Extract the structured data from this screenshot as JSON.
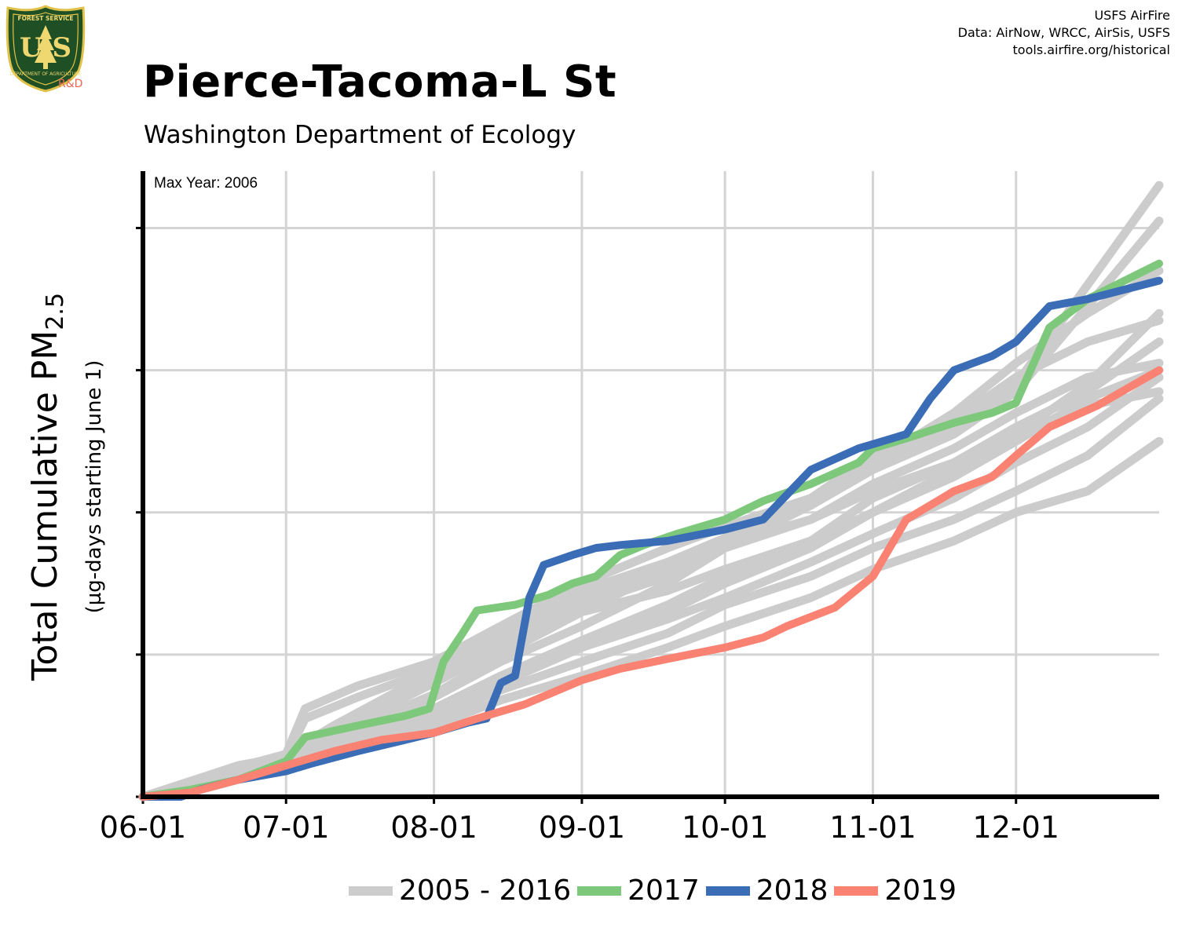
{
  "header": {
    "title": "Pierce-Tacoma-L St",
    "subtitle": "Washington Department of Ecology",
    "credits": [
      "USFS AirFire",
      "Data: AirNow, WRCC, AirSis, USFS",
      "tools.airfire.org/historical"
    ]
  },
  "logo": {
    "top_text": "FOREST SERVICE",
    "letters": "U S",
    "bottom_text": "DEPARTMENT OF AGRICULTURE",
    "rd_text": "R&D"
  },
  "chart_data": {
    "type": "line",
    "title": "Pierce-Tacoma-L St",
    "subtitle": "Washington Department of Ecology",
    "ylabel": "Total Cumulative PM",
    "ylabel_sub": "2.5",
    "ylabel2": "(µg-days starting June 1)",
    "annotation": "Max Year: 2006",
    "x_ticks": [
      "06-01",
      "07-01",
      "08-01",
      "09-01",
      "10-01",
      "11-01",
      "12-01"
    ],
    "x_tick_days": [
      0,
      30,
      61,
      92,
      122,
      153,
      183
    ],
    "xlim": [
      0,
      213
    ],
    "ylim": [
      0,
      4.4
    ],
    "y_gridlines": [
      1,
      2,
      3,
      4
    ],
    "y_tick_labels": false,
    "grid": true,
    "legend_position": "bottom",
    "colors": {
      "background_series": "#cccccc",
      "2017": "#7dc87a",
      "2018": "#3a6db5",
      "2019": "#f98272"
    },
    "legend": [
      {
        "label": "2005 - 2016",
        "color": "#cccccc"
      },
      {
        "label": "2017",
        "color": "#7dc87a"
      },
      {
        "label": "2018",
        "color": "#3a6db5"
      },
      {
        "label": "2019",
        "color": "#f98272"
      }
    ],
    "background_series": [
      {
        "name": "2006",
        "points": [
          [
            0,
            0
          ],
          [
            20,
            0.2
          ],
          [
            30,
            0.3
          ],
          [
            34,
            0.62
          ],
          [
            45,
            0.78
          ],
          [
            61,
            0.95
          ],
          [
            75,
            1.2
          ],
          [
            92,
            1.5
          ],
          [
            110,
            1.75
          ],
          [
            122,
            1.9
          ],
          [
            140,
            2.1
          ],
          [
            153,
            2.35
          ],
          [
            170,
            2.6
          ],
          [
            183,
            2.9
          ],
          [
            198,
            3.6
          ],
          [
            213,
            4.3
          ]
        ]
      },
      {
        "name": "2007",
        "points": [
          [
            0,
            0
          ],
          [
            20,
            0.22
          ],
          [
            30,
            0.28
          ],
          [
            34,
            0.55
          ],
          [
            45,
            0.7
          ],
          [
            61,
            0.9
          ],
          [
            75,
            1.15
          ],
          [
            92,
            1.45
          ],
          [
            110,
            1.65
          ],
          [
            122,
            1.82
          ],
          [
            140,
            2.05
          ],
          [
            153,
            2.3
          ],
          [
            170,
            2.55
          ],
          [
            183,
            2.85
          ],
          [
            198,
            3.45
          ],
          [
            213,
            4.05
          ]
        ]
      },
      {
        "name": "2008",
        "points": [
          [
            0,
            0
          ],
          [
            20,
            0.18
          ],
          [
            30,
            0.25
          ],
          [
            40,
            0.4
          ],
          [
            61,
            0.7
          ],
          [
            75,
            0.95
          ],
          [
            92,
            1.2
          ],
          [
            110,
            1.5
          ],
          [
            122,
            1.75
          ],
          [
            140,
            2.05
          ],
          [
            153,
            2.35
          ],
          [
            170,
            2.7
          ],
          [
            183,
            3.05
          ],
          [
            198,
            3.4
          ],
          [
            213,
            3.7
          ]
        ]
      },
      {
        "name": "2009",
        "points": [
          [
            0,
            0
          ],
          [
            20,
            0.2
          ],
          [
            30,
            0.28
          ],
          [
            40,
            0.42
          ],
          [
            61,
            0.72
          ],
          [
            75,
            1.0
          ],
          [
            92,
            1.3
          ],
          [
            110,
            1.6
          ],
          [
            122,
            1.82
          ],
          [
            140,
            2.1
          ],
          [
            153,
            2.4
          ],
          [
            170,
            2.65
          ],
          [
            183,
            2.95
          ],
          [
            198,
            3.2
          ],
          [
            213,
            3.35
          ]
        ]
      },
      {
        "name": "2010",
        "points": [
          [
            0,
            0
          ],
          [
            20,
            0.19
          ],
          [
            30,
            0.26
          ],
          [
            40,
            0.38
          ],
          [
            61,
            0.62
          ],
          [
            75,
            0.85
          ],
          [
            92,
            1.1
          ],
          [
            110,
            1.35
          ],
          [
            122,
            1.55
          ],
          [
            140,
            1.8
          ],
          [
            153,
            2.1
          ],
          [
            170,
            2.35
          ],
          [
            183,
            2.6
          ],
          [
            198,
            2.85
          ],
          [
            213,
            3.2
          ]
        ]
      },
      {
        "name": "2011",
        "points": [
          [
            0,
            0
          ],
          [
            20,
            0.17
          ],
          [
            30,
            0.23
          ],
          [
            40,
            0.35
          ],
          [
            61,
            0.58
          ],
          [
            75,
            0.8
          ],
          [
            92,
            1.05
          ],
          [
            110,
            1.3
          ],
          [
            122,
            1.5
          ],
          [
            140,
            1.75
          ],
          [
            153,
            2.0
          ],
          [
            170,
            2.3
          ],
          [
            183,
            2.55
          ],
          [
            198,
            2.75
          ],
          [
            213,
            2.85
          ]
        ]
      },
      {
        "name": "2012",
        "points": [
          [
            0,
            0
          ],
          [
            20,
            0.18
          ],
          [
            30,
            0.24
          ],
          [
            40,
            0.36
          ],
          [
            61,
            0.6
          ],
          [
            75,
            0.82
          ],
          [
            92,
            1.05
          ],
          [
            110,
            1.25
          ],
          [
            122,
            1.4
          ],
          [
            140,
            1.65
          ],
          [
            153,
            1.85
          ],
          [
            170,
            2.1
          ],
          [
            183,
            2.35
          ],
          [
            198,
            2.6
          ],
          [
            213,
            2.95
          ]
        ]
      },
      {
        "name": "2013",
        "points": [
          [
            0,
            0
          ],
          [
            20,
            0.16
          ],
          [
            30,
            0.22
          ],
          [
            40,
            0.33
          ],
          [
            61,
            0.55
          ],
          [
            75,
            0.75
          ],
          [
            92,
            0.95
          ],
          [
            110,
            1.15
          ],
          [
            122,
            1.35
          ],
          [
            140,
            1.55
          ],
          [
            153,
            1.75
          ],
          [
            170,
            1.95
          ],
          [
            183,
            2.15
          ],
          [
            198,
            2.4
          ],
          [
            213,
            2.8
          ]
        ]
      },
      {
        "name": "2014",
        "points": [
          [
            0,
            0
          ],
          [
            20,
            0.2
          ],
          [
            30,
            0.27
          ],
          [
            40,
            0.45
          ],
          [
            61,
            0.8
          ],
          [
            75,
            1.05
          ],
          [
            92,
            1.35
          ],
          [
            110,
            1.55
          ],
          [
            122,
            1.75
          ],
          [
            140,
            1.95
          ],
          [
            153,
            2.2
          ],
          [
            170,
            2.45
          ],
          [
            183,
            2.7
          ],
          [
            198,
            2.95
          ],
          [
            213,
            3.05
          ]
        ]
      },
      {
        "name": "2015",
        "points": [
          [
            0,
            0
          ],
          [
            20,
            0.21
          ],
          [
            30,
            0.3
          ],
          [
            40,
            0.5
          ],
          [
            61,
            0.88
          ],
          [
            75,
            1.12
          ],
          [
            92,
            1.4
          ],
          [
            110,
            1.6
          ],
          [
            122,
            1.78
          ],
          [
            140,
            1.95
          ],
          [
            153,
            2.15
          ],
          [
            170,
            2.35
          ],
          [
            183,
            2.55
          ],
          [
            198,
            2.9
          ],
          [
            213,
            3.4
          ]
        ]
      },
      {
        "name": "2016",
        "points": [
          [
            0,
            0
          ],
          [
            20,
            0.15
          ],
          [
            30,
            0.2
          ],
          [
            40,
            0.3
          ],
          [
            61,
            0.5
          ],
          [
            75,
            0.68
          ],
          [
            92,
            0.85
          ],
          [
            110,
            1.05
          ],
          [
            122,
            1.2
          ],
          [
            140,
            1.4
          ],
          [
            153,
            1.6
          ],
          [
            170,
            1.8
          ],
          [
            183,
            2.0
          ],
          [
            198,
            2.15
          ],
          [
            213,
            2.5
          ]
        ]
      },
      {
        "name": "2005",
        "points": [
          [
            0,
            0
          ],
          [
            20,
            0.2
          ],
          [
            30,
            0.3
          ],
          [
            40,
            0.48
          ],
          [
            61,
            0.82
          ],
          [
            75,
            1.08
          ],
          [
            92,
            1.3
          ],
          [
            110,
            1.45
          ],
          [
            122,
            1.6
          ],
          [
            140,
            1.8
          ],
          [
            153,
            2.0
          ],
          [
            170,
            2.25
          ],
          [
            183,
            2.5
          ],
          [
            198,
            2.8
          ],
          [
            213,
            3.0
          ]
        ]
      }
    ],
    "highlight_series": [
      {
        "name": "2017",
        "color": "#7dc87a",
        "points": [
          [
            0,
            0
          ],
          [
            10,
            0.05
          ],
          [
            20,
            0.12
          ],
          [
            30,
            0.25
          ],
          [
            34,
            0.42
          ],
          [
            45,
            0.5
          ],
          [
            55,
            0.57
          ],
          [
            60,
            0.62
          ],
          [
            63,
            0.95
          ],
          [
            67,
            1.15
          ],
          [
            70,
            1.31
          ],
          [
            78,
            1.35
          ],
          [
            85,
            1.42
          ],
          [
            90,
            1.5
          ],
          [
            95,
            1.55
          ],
          [
            100,
            1.7
          ],
          [
            105,
            1.77
          ],
          [
            112,
            1.85
          ],
          [
            122,
            1.95
          ],
          [
            130,
            2.08
          ],
          [
            140,
            2.2
          ],
          [
            150,
            2.35
          ],
          [
            153,
            2.45
          ],
          [
            160,
            2.52
          ],
          [
            170,
            2.63
          ],
          [
            178,
            2.7
          ],
          [
            183,
            2.77
          ],
          [
            190,
            3.3
          ],
          [
            198,
            3.5
          ],
          [
            213,
            3.75
          ]
        ]
      },
      {
        "name": "2018",
        "color": "#3a6db5",
        "points": [
          [
            0,
            0
          ],
          [
            8,
            0
          ],
          [
            12,
            0.05
          ],
          [
            20,
            0.12
          ],
          [
            30,
            0.18
          ],
          [
            35,
            0.23
          ],
          [
            45,
            0.32
          ],
          [
            55,
            0.4
          ],
          [
            61,
            0.45
          ],
          [
            68,
            0.52
          ],
          [
            72,
            0.55
          ],
          [
            75,
            0.8
          ],
          [
            78,
            0.85
          ],
          [
            81,
            1.4
          ],
          [
            84,
            1.63
          ],
          [
            90,
            1.7
          ],
          [
            95,
            1.75
          ],
          [
            100,
            1.77
          ],
          [
            110,
            1.8
          ],
          [
            122,
            1.88
          ],
          [
            130,
            1.95
          ],
          [
            140,
            2.3
          ],
          [
            150,
            2.45
          ],
          [
            153,
            2.48
          ],
          [
            160,
            2.55
          ],
          [
            165,
            2.8
          ],
          [
            170,
            3.0
          ],
          [
            178,
            3.1
          ],
          [
            183,
            3.2
          ],
          [
            190,
            3.45
          ],
          [
            198,
            3.5
          ],
          [
            213,
            3.63
          ]
        ]
      },
      {
        "name": "2019",
        "color": "#f98272",
        "points": [
          [
            0,
            0
          ],
          [
            10,
            0.03
          ],
          [
            20,
            0.12
          ],
          [
            30,
            0.22
          ],
          [
            40,
            0.32
          ],
          [
            50,
            0.4
          ],
          [
            61,
            0.45
          ],
          [
            70,
            0.55
          ],
          [
            80,
            0.65
          ],
          [
            92,
            0.82
          ],
          [
            100,
            0.9
          ],
          [
            110,
            0.97
          ],
          [
            122,
            1.05
          ],
          [
            130,
            1.12
          ],
          [
            135,
            1.2
          ],
          [
            145,
            1.33
          ],
          [
            153,
            1.55
          ],
          [
            160,
            1.95
          ],
          [
            170,
            2.15
          ],
          [
            178,
            2.25
          ],
          [
            183,
            2.4
          ],
          [
            190,
            2.6
          ],
          [
            200,
            2.75
          ],
          [
            213,
            3.0
          ]
        ]
      }
    ]
  }
}
